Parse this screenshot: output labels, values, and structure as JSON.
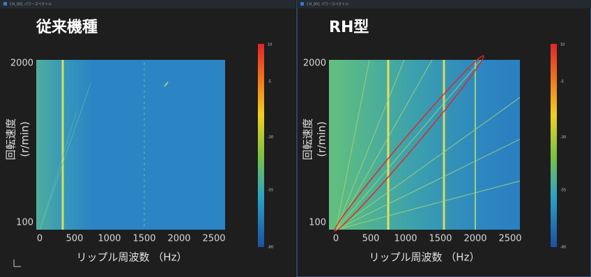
{
  "panels": [
    {
      "window_title": "CH_001 パワースペクトル",
      "heading": "従来機種",
      "y_label": [
        "回転速度",
        "(r/min)"
      ],
      "x_label": "リップル周波数 （Hz）",
      "x_ticks": [
        0,
        500,
        1000,
        1500,
        2000,
        2500
      ],
      "y_ticks": [
        2000,
        100
      ],
      "colorbar_ticks": [
        10,
        -5,
        -30,
        -55,
        -80
      ]
    },
    {
      "window_title": "CH_001 パワースペクトル",
      "heading": "RH型",
      "y_label": [
        "回転速度",
        "(r/min)"
      ],
      "x_label": "リップル周波数 （Hz）",
      "x_ticks": [
        0,
        500,
        1000,
        1500,
        2000,
        2500
      ],
      "y_ticks": [
        2000,
        100
      ],
      "colorbar_ticks": [
        10,
        -5,
        -30,
        -55,
        -80
      ]
    }
  ]
}
